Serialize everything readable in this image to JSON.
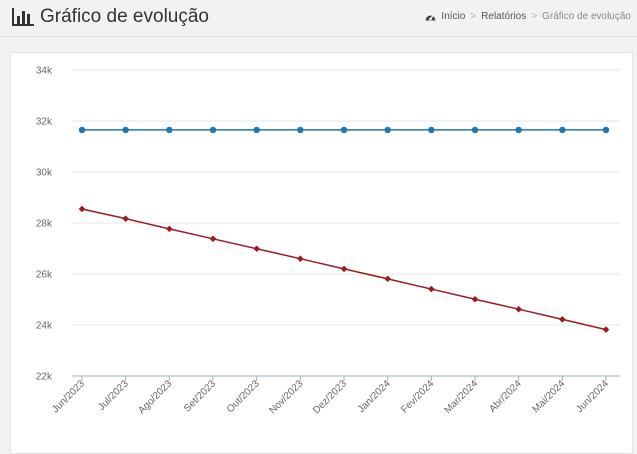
{
  "header": {
    "title": "Gráfico de evolução",
    "title_icon": "bar-chart-icon"
  },
  "breadcrumb": {
    "home_icon": "dashboard-icon",
    "items": [
      "Início",
      "Relatórios",
      "Gráfico de evolução"
    ],
    "separator": ">"
  },
  "chart_data": {
    "type": "line",
    "x": [
      "Jun/2023",
      "Jul/2023",
      "Ago/2023",
      "Set/2023",
      "Out/2023",
      "Nov/2023",
      "Dez/2023",
      "Jan/2024",
      "Fev/2024",
      "Mar/2024",
      "Abr/2024",
      "Mai/2024",
      "Jun/2024"
    ],
    "series": [
      {
        "color": "#1f77b4",
        "marker": "circle",
        "values": [
          31650,
          31650,
          31650,
          31650,
          31650,
          31650,
          31650,
          31650,
          31650,
          31650,
          31650,
          31650,
          31650
        ]
      },
      {
        "color": "#9b1b22",
        "marker": "diamond",
        "values": [
          28550,
          28170,
          27770,
          27380,
          26990,
          26600,
          26200,
          25810,
          25410,
          25010,
          24620,
          24220,
          23820
        ]
      }
    ],
    "ylim": [
      22000,
      34000
    ],
    "yticks": [
      22000,
      24000,
      26000,
      28000,
      30000,
      32000,
      34000
    ],
    "ytick_labels": [
      "22k",
      "24k",
      "26k",
      "28k",
      "30k",
      "32k",
      "34k"
    ],
    "grid": true,
    "title": "",
    "xlabel": "",
    "ylabel": ""
  }
}
